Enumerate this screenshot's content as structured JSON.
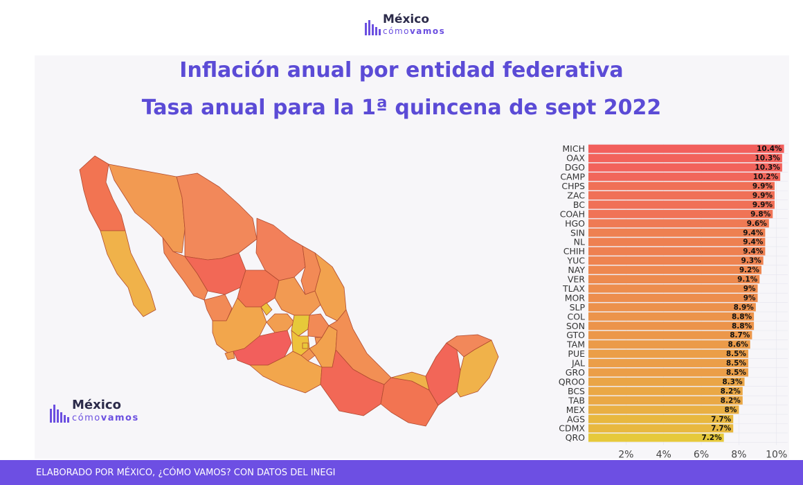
{
  "logo": {
    "word1": "México",
    "word2_a": "cómo",
    "word2_b": "vamos",
    "color": "#6b4fe0"
  },
  "title_line1": "Inflación anual por entidad federativa",
  "title_line2": "Tasa anual para la 1ª quincena de sept 2022",
  "footer_text": "ELABORADO POR MÉXICO, ¿CÓMO VAMOS? CON DATOS DEL INEGI",
  "colors": {
    "title": "#5b4bd6",
    "footer": "#6d4fe3",
    "high": "#f25f5c",
    "low": "#e6c93a"
  },
  "chart_data": {
    "type": "bar",
    "orientation": "horizontal",
    "categories": [
      "MICH",
      "OAX",
      "DGO",
      "CAMP",
      "CHPS",
      "ZAC",
      "BC",
      "COAH",
      "HGO",
      "SIN",
      "NL",
      "CHIH",
      "YUC",
      "NAY",
      "VER",
      "TLAX",
      "MOR",
      "SLP",
      "COL",
      "SON",
      "GTO",
      "TAM",
      "PUE",
      "JAL",
      "GRO",
      "QROO",
      "BCS",
      "TAB",
      "MEX",
      "AGS",
      "CDMX",
      "QRO"
    ],
    "values": [
      10.4,
      10.3,
      10.3,
      10.2,
      9.9,
      9.9,
      9.9,
      9.8,
      9.6,
      9.4,
      9.4,
      9.4,
      9.3,
      9.2,
      9.1,
      9.0,
      9.0,
      8.9,
      8.8,
      8.8,
      8.7,
      8.6,
      8.5,
      8.5,
      8.5,
      8.3,
      8.2,
      8.2,
      8.0,
      7.7,
      7.7,
      7.2
    ],
    "value_labels": [
      "10.4%",
      "10.3%",
      "10.3%",
      "10.2%",
      "9.9%",
      "9.9%",
      "9.9%",
      "9.8%",
      "9.6%",
      "9.4%",
      "9.4%",
      "9.4%",
      "9.3%",
      "9.2%",
      "9.1%",
      "9%",
      "9%",
      "8.9%",
      "8.8%",
      "8.8%",
      "8.7%",
      "8.6%",
      "8.5%",
      "8.5%",
      "8.5%",
      "8.3%",
      "8.2%",
      "8.2%",
      "8%",
      "7.7%",
      "7.7%",
      "7.2%"
    ],
    "xticks": [
      "2%",
      "4%",
      "6%",
      "8%",
      "10%"
    ],
    "xtick_values": [
      2,
      4,
      6,
      8,
      10
    ],
    "xlim": [
      0,
      10.6
    ],
    "grid": true,
    "color_scale": "yellow-to-red"
  }
}
